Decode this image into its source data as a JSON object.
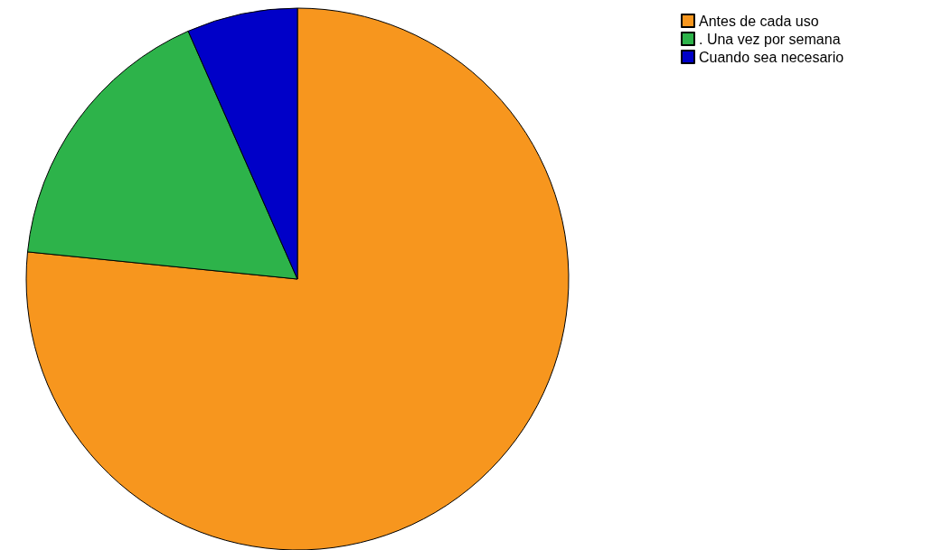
{
  "chart_data": {
    "type": "pie",
    "categories": [
      "Antes de cada uso",
      ". Una vez por semana",
      "Cuando sea necesario"
    ],
    "values": [
      76.6,
      16.8,
      6.6
    ],
    "colors": [
      "#f7961e",
      "#2db34a",
      "#0000c8"
    ],
    "legend": "top right"
  }
}
